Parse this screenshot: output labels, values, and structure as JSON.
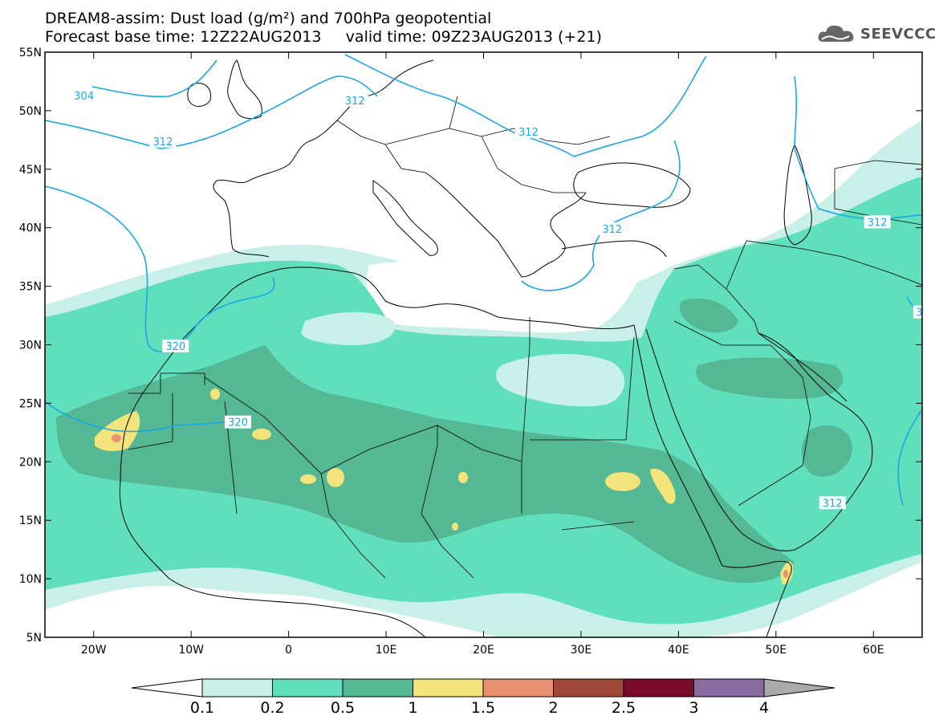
{
  "header": {
    "title_line1": "DREAM8-assim: Dust load (g/m²) and 700hPa geopotential",
    "title_line2": "Forecast base time: 12Z22AUG2013     valid time: 09Z23AUG2013 (+21)"
  },
  "logo": {
    "text": "SEEVCCC",
    "icon": "cloud-logo-icon"
  },
  "map": {
    "lat_labels": [
      "55N",
      "50N",
      "45N",
      "40N",
      "35N",
      "30N",
      "25N",
      "20N",
      "15N",
      "10N",
      "5N"
    ],
    "lon_labels": [
      "20W",
      "10W",
      "0",
      "10E",
      "20E",
      "30E",
      "40E",
      "50E",
      "60E"
    ],
    "lat_values": [
      55,
      50,
      45,
      40,
      35,
      30,
      25,
      20,
      15,
      10,
      5
    ],
    "lon_values": [
      -20,
      -10,
      0,
      10,
      20,
      30,
      40,
      50,
      60
    ],
    "extent": {
      "lon_min": -25,
      "lon_max": 65,
      "lat_min": 5,
      "lat_max": 55
    },
    "contour_labels": [
      {
        "text": "304",
        "lon": -21,
        "lat": 51.3
      },
      {
        "text": "312",
        "lon": -12.9,
        "lat": 47.4
      },
      {
        "text": "312",
        "lon": 6.8,
        "lat": 50.9
      },
      {
        "text": "312",
        "lon": 24.6,
        "lat": 48.2
      },
      {
        "text": "312",
        "lon": 33.2,
        "lat": 39.9
      },
      {
        "text": "312",
        "lon": 60.4,
        "lat": 40.5
      },
      {
        "text": "312",
        "lon": 55.8,
        "lat": 16.5
      },
      {
        "text": "320",
        "lon": -11.6,
        "lat": 29.9
      },
      {
        "text": "320",
        "lon": -5.2,
        "lat": 23.4
      },
      {
        "text": "3",
        "lon": 64.7,
        "lat": 32.8
      }
    ],
    "colors": {
      "dust_01": "#c8f0e8",
      "dust_02": "#5fdfbc",
      "dust_05": "#55b894",
      "dust_1": "#f2e47a",
      "dust_15": "#e89070",
      "dust_2": "#a04838",
      "contour": "#1aa7e6",
      "coast": "#000000"
    }
  },
  "colorbar": {
    "labels": [
      "0.1",
      "0.2",
      "0.5",
      "1",
      "1.5",
      "2",
      "2.5",
      "3",
      "4"
    ],
    "colors": [
      "#c8f0e8",
      "#5fdfbc",
      "#55b894",
      "#f2e47a",
      "#e89070",
      "#a04838",
      "#7a0a2a",
      "#8a6aa0"
    ],
    "under_color": "#ffffff",
    "over_color": "#aaaaaa"
  }
}
